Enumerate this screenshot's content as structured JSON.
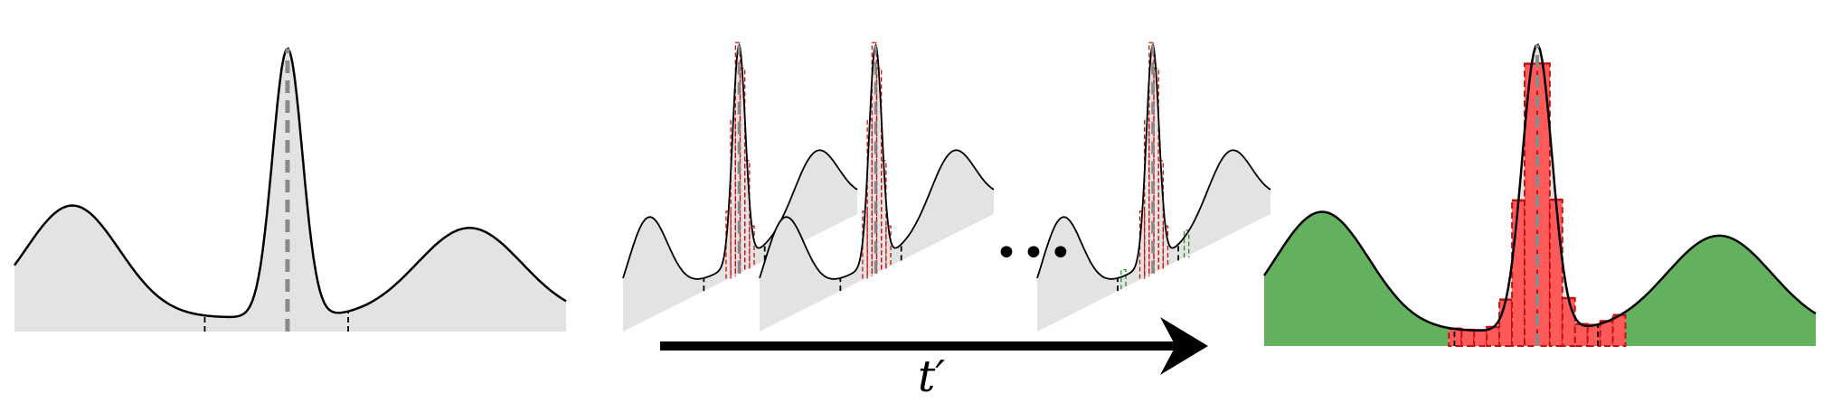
{
  "colors": {
    "area_fill": "#e3e3e3",
    "curve": "#000000",
    "center_line": "#8a8a8a",
    "bin_red_fill": "#ff5a5a",
    "bin_red_stroke": "#c61010",
    "tail_green_fill": "#63b15f",
    "tail_green_stroke": "#2d8a2a",
    "arrow": "#000000"
  },
  "arrow_label": "t′",
  "ellipsis": "•••"
}
